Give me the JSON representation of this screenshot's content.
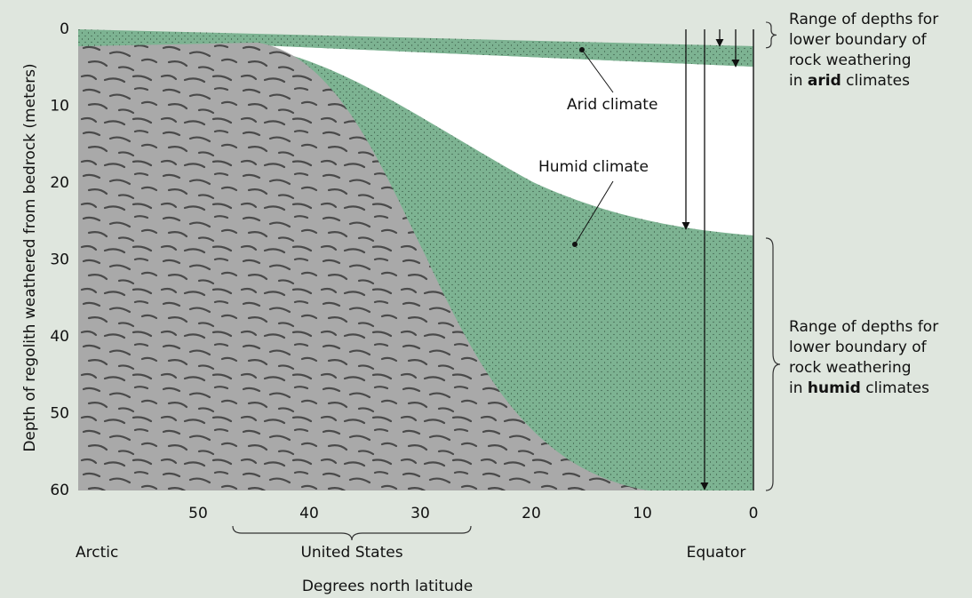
{
  "y_axis": {
    "label": "Depth of regolith weathered from bedrock (meters)",
    "ticks": [
      0,
      10,
      20,
      30,
      40,
      50,
      60
    ]
  },
  "x_axis": {
    "label": "Degrees north latitude",
    "ticks": [
      50,
      40,
      30,
      20,
      10,
      0
    ],
    "regions": {
      "left": "Arctic",
      "middle": "United States",
      "right": "Equator"
    }
  },
  "annotations": {
    "arid": "Arid climate",
    "humid": "Humid climate"
  },
  "notes": {
    "arid": {
      "lines": [
        "Range of depths for",
        "lower boundary of",
        "rock weathering"
      ],
      "last": {
        "before": "in",
        "bold": "arid",
        "after": "climates"
      }
    },
    "humid": {
      "lines": [
        "Range of depths for",
        "lower boundary of",
        "rock weathering"
      ],
      "last": {
        "before": "in",
        "bold": "humid",
        "after": "climates"
      }
    }
  }
}
